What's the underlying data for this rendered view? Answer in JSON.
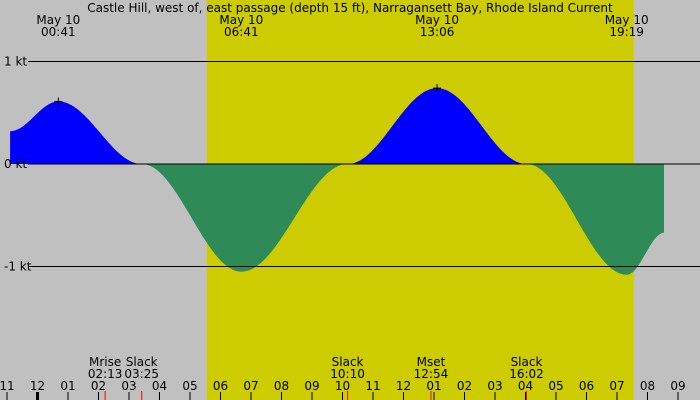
{
  "title": "Castle Hill, west of, east passage (depth 15 ft), Narragansett Bay, Rhode Island Current",
  "colors": {
    "background": "#c0c0c0",
    "daylight": "#cccc00",
    "flood": "#0000ff",
    "ebb": "#2e8b57",
    "line": "#000000",
    "marker_red": "#ff0000"
  },
  "chart_data": {
    "type": "area",
    "title": "Castle Hill, west of, east passage (depth 15 ft), Narragansett Bay, Rhode Island Current",
    "ylabel": "",
    "ylim": [
      -2,
      1.4
    ],
    "xlim": [
      -0.9,
      20.55
    ],
    "y_tick_labels": [
      {
        "value": 1,
        "label": "1 kt"
      },
      {
        "value": 0,
        "label": "0 kt"
      },
      {
        "value": -1,
        "label": "-1 kt"
      }
    ],
    "grid": true,
    "daylight_hours": [
      5.55,
      19.55
    ],
    "hour_ticks": [
      {
        "hour": -1,
        "label": "11"
      },
      {
        "hour": 0,
        "label": "12"
      },
      {
        "hour": 1,
        "label": "01"
      },
      {
        "hour": 2,
        "label": "02"
      },
      {
        "hour": 3,
        "label": "03"
      },
      {
        "hour": 4,
        "label": "04"
      },
      {
        "hour": 5,
        "label": "05"
      },
      {
        "hour": 6,
        "label": "06"
      },
      {
        "hour": 7,
        "label": "07"
      },
      {
        "hour": 8,
        "label": "08"
      },
      {
        "hour": 9,
        "label": "09"
      },
      {
        "hour": 10,
        "label": "10"
      },
      {
        "hour": 11,
        "label": "11"
      },
      {
        "hour": 12,
        "label": "12"
      },
      {
        "hour": 13,
        "label": "01"
      },
      {
        "hour": 14,
        "label": "02"
      },
      {
        "hour": 15,
        "label": "03"
      },
      {
        "hour": 16,
        "label": "04"
      },
      {
        "hour": 17,
        "label": "05"
      },
      {
        "hour": 18,
        "label": "06"
      },
      {
        "hour": 19,
        "label": "07"
      },
      {
        "hour": 20,
        "label": "08"
      },
      {
        "hour": 21,
        "label": "09"
      }
    ],
    "top_labels": [
      {
        "hour": 0.683,
        "date": "May 10",
        "time": "00:41"
      },
      {
        "hour": 6.683,
        "date": "May 10",
        "time": "06:41"
      },
      {
        "hour": 13.1,
        "date": "May 10",
        "time": "13:06"
      },
      {
        "hour": 19.317,
        "date": "May 10",
        "time": "19:19"
      }
    ],
    "bottom_events": [
      {
        "hour": 2.217,
        "name": "Mrise",
        "time": "02:13"
      },
      {
        "hour": 3.417,
        "name": "Slack",
        "time": "03:25"
      },
      {
        "hour": 10.167,
        "name": "Slack",
        "time": "10:10"
      },
      {
        "hour": 12.9,
        "name": "Mset",
        "time": "12:54"
      },
      {
        "hour": 16.033,
        "name": "Slack",
        "time": "16:02"
      }
    ],
    "series": [
      {
        "key": "current",
        "x": [
          -0.9,
          0.683,
          3.417,
          6.683,
          10.167,
          13.1,
          16.033,
          19.317,
          20.55
        ],
        "y": [
          0.32,
          0.61,
          0.0,
          -1.05,
          0.0,
          0.74,
          0.0,
          -1.08,
          -0.67
        ]
      }
    ]
  }
}
